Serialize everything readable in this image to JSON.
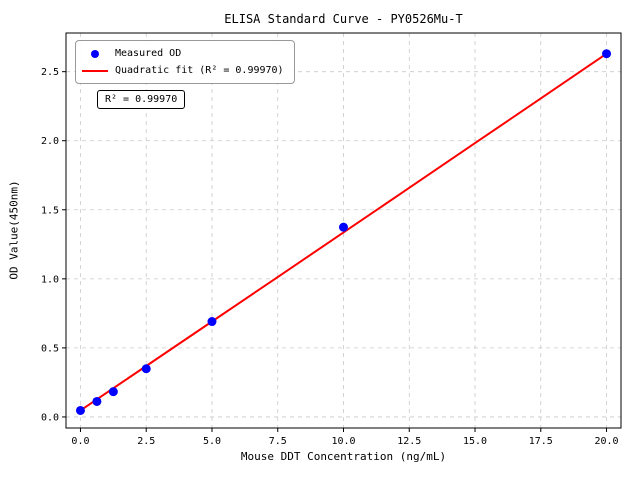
{
  "chart_data": {
    "type": "scatter",
    "title": "ELISA Standard Curve - PY0526Mu-T",
    "xlabel": "Mouse DDT Concentration (ng/mL)",
    "ylabel": "OD Value(450nm)",
    "xlim": [
      -0.55,
      20.55
    ],
    "ylim": [
      -0.08,
      2.78
    ],
    "grid": true,
    "grid_style": "dashed",
    "legend_position": "upper left",
    "annotation": "R² = 0.99970",
    "r_squared": 0.9997,
    "x_ticks": [
      {
        "v": 0.0,
        "label": "0.0"
      },
      {
        "v": 2.5,
        "label": "2.5"
      },
      {
        "v": 5.0,
        "label": "5.0"
      },
      {
        "v": 7.5,
        "label": "7.5"
      },
      {
        "v": 10.0,
        "label": "10.0"
      },
      {
        "v": 12.5,
        "label": "12.5"
      },
      {
        "v": 15.0,
        "label": "15.0"
      },
      {
        "v": 17.5,
        "label": "17.5"
      },
      {
        "v": 20.0,
        "label": "20.0"
      }
    ],
    "y_ticks": [
      {
        "v": 0.0,
        "label": "0.0"
      },
      {
        "v": 0.5,
        "label": "0.5"
      },
      {
        "v": 1.0,
        "label": "1.0"
      },
      {
        "v": 1.5,
        "label": "1.5"
      },
      {
        "v": 2.0,
        "label": "2.0"
      },
      {
        "v": 2.5,
        "label": "2.5"
      }
    ],
    "legend": {
      "items": [
        {
          "label": "Measured OD",
          "marker": "dot",
          "color": "#0000ff"
        },
        {
          "label": "Quadratic fit (R² = 0.99970)",
          "marker": "line",
          "color": "#ff0000"
        }
      ]
    },
    "series": [
      {
        "name": "Quadratic fit",
        "type": "line",
        "color": "#ff0000",
        "points": [
          [
            0,
            0.047
          ],
          [
            2.5,
            0.369
          ],
          [
            5,
            0.691
          ],
          [
            7.5,
            1.013
          ],
          [
            10,
            1.336
          ],
          [
            12.5,
            1.659
          ],
          [
            15,
            1.983
          ],
          [
            17.5,
            2.306
          ],
          [
            20,
            2.63
          ]
        ]
      },
      {
        "name": "Measured OD",
        "type": "scatter",
        "color": "#0000ff",
        "points": [
          [
            0,
            0.047
          ],
          [
            0.625,
            0.112
          ],
          [
            1.25,
            0.183
          ],
          [
            2.5,
            0.349
          ],
          [
            5,
            0.691
          ],
          [
            10,
            1.374
          ],
          [
            20,
            2.63
          ]
        ]
      }
    ]
  }
}
